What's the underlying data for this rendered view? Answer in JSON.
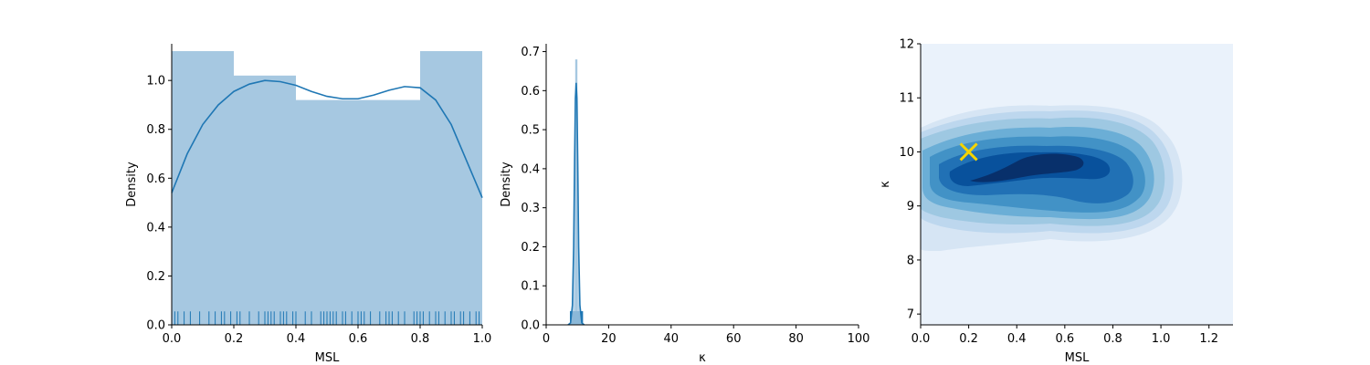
{
  "colors": {
    "seaborn_blue": "#1f77b4",
    "hist_fill": "#a6c8e1",
    "marker": "#f5d400",
    "kde_levels": [
      "#eaf2fb",
      "#d6e5f4",
      "#bdd7ee",
      "#9ec8e2",
      "#6baed6",
      "#4292c6",
      "#2171b5",
      "#08519c",
      "#08306b"
    ]
  },
  "chart_data": [
    {
      "type": "bar",
      "subtype": "histogram-with-kde-and-rug",
      "title": "",
      "xlabel": "MSL",
      "ylabel": "Density",
      "xlim": [
        0,
        1
      ],
      "ylim": [
        0,
        1.15
      ],
      "xticks": [
        "0.0",
        "0.2",
        "0.4",
        "0.6",
        "0.8",
        "1.0"
      ],
      "yticks": [
        "0.0",
        "0.2",
        "0.4",
        "0.6",
        "0.8",
        "1.0"
      ],
      "bins": [
        {
          "x0": 0.0,
          "x1": 0.2,
          "value": 1.12
        },
        {
          "x0": 0.2,
          "x1": 0.4,
          "value": 1.02
        },
        {
          "x0": 0.4,
          "x1": 0.6,
          "value": 0.92
        },
        {
          "x0": 0.6,
          "x1": 0.8,
          "value": 0.92
        },
        {
          "x0": 0.8,
          "x1": 1.0,
          "value": 1.12
        }
      ],
      "kde": {
        "x": [
          0.0,
          0.05,
          0.1,
          0.15,
          0.2,
          0.25,
          0.3,
          0.35,
          0.4,
          0.45,
          0.5,
          0.55,
          0.6,
          0.65,
          0.7,
          0.75,
          0.8,
          0.85,
          0.9,
          0.95,
          1.0
        ],
        "y": [
          0.54,
          0.7,
          0.82,
          0.9,
          0.955,
          0.985,
          1.0,
          0.995,
          0.98,
          0.955,
          0.935,
          0.925,
          0.925,
          0.94,
          0.96,
          0.975,
          0.97,
          0.92,
          0.82,
          0.67,
          0.52
        ]
      },
      "rug": [
        0.01,
        0.02,
        0.04,
        0.06,
        0.09,
        0.12,
        0.14,
        0.16,
        0.17,
        0.19,
        0.21,
        0.22,
        0.25,
        0.28,
        0.3,
        0.31,
        0.32,
        0.33,
        0.35,
        0.36,
        0.37,
        0.39,
        0.4,
        0.43,
        0.45,
        0.48,
        0.49,
        0.5,
        0.51,
        0.52,
        0.53,
        0.55,
        0.56,
        0.58,
        0.6,
        0.61,
        0.62,
        0.64,
        0.67,
        0.69,
        0.7,
        0.71,
        0.73,
        0.75,
        0.78,
        0.79,
        0.8,
        0.81,
        0.83,
        0.85,
        0.86,
        0.88,
        0.9,
        0.91,
        0.93,
        0.94,
        0.96,
        0.98,
        0.99
      ],
      "rug_height": 0.055
    },
    {
      "type": "bar",
      "subtype": "histogram-with-kde-and-rug",
      "title": "",
      "xlabel": "κ",
      "ylabel": "Density",
      "xlim": [
        0,
        100
      ],
      "ylim": [
        0,
        0.72
      ],
      "xticks": [
        "0",
        "20",
        "40",
        "60",
        "80",
        "100"
      ],
      "yticks": [
        "0.0",
        "0.1",
        "0.2",
        "0.3",
        "0.4",
        "0.5",
        "0.6",
        "0.7"
      ],
      "bins": [
        {
          "x0": 9.3,
          "x1": 10.0,
          "value": 0.68
        }
      ],
      "kde": {
        "x": [
          7.0,
          7.8,
          8.4,
          8.8,
          9.1,
          9.35,
          9.6,
          9.85,
          10.1,
          10.4,
          10.8,
          11.4,
          12.2
        ],
        "y": [
          0.0,
          0.005,
          0.05,
          0.2,
          0.42,
          0.58,
          0.62,
          0.58,
          0.42,
          0.2,
          0.05,
          0.005,
          0.0
        ]
      },
      "rug_span": [
        7.6,
        11.8
      ],
      "rug_height": 0.035
    },
    {
      "type": "heatmap",
      "subtype": "kde-contour",
      "title": "",
      "xlabel": "MSL",
      "ylabel": "κ",
      "xlim": [
        0,
        1.3
      ],
      "ylim": [
        6.8,
        12
      ],
      "xticks": [
        "0.0",
        "0.2",
        "0.4",
        "0.6",
        "0.8",
        "1.0",
        "1.2"
      ],
      "yticks": [
        "7",
        "8",
        "9",
        "10",
        "11",
        "12"
      ],
      "marker": {
        "x": 0.2,
        "y": 10.0,
        "symbol": "x"
      }
    }
  ]
}
